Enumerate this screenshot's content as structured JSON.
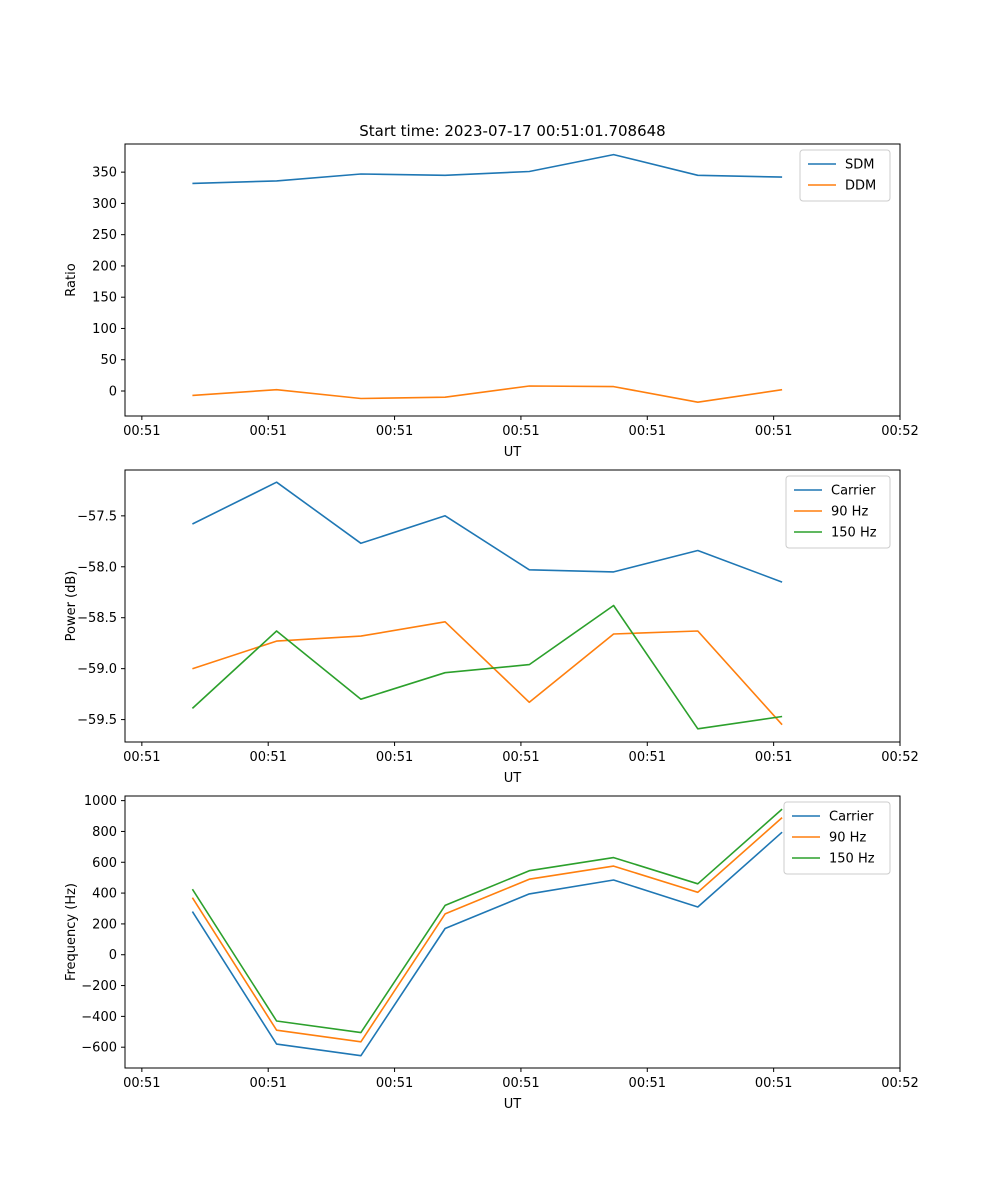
{
  "colors": {
    "blue": "#1f77b4",
    "orange": "#ff7f0e",
    "green": "#2ca02c"
  },
  "chart_data": [
    {
      "type": "line",
      "title": "Start time: 2023-07-17 00:51:01.708648",
      "xlabel": "UT",
      "ylabel": "Ratio",
      "x": [
        1,
        2,
        3,
        4,
        5,
        6,
        7,
        8
      ],
      "xlim": [
        0.2,
        9.4
      ],
      "xticks": [
        {
          "value": 0.4,
          "label": "00:51"
        },
        {
          "value": 1.9,
          "label": "00:51"
        },
        {
          "value": 3.4,
          "label": "00:51"
        },
        {
          "value": 4.9,
          "label": "00:51"
        },
        {
          "value": 6.4,
          "label": "00:51"
        },
        {
          "value": 7.9,
          "label": "00:51"
        },
        {
          "value": 9.4,
          "label": "00:52"
        }
      ],
      "ylim": [
        -40,
        395
      ],
      "yticks": [
        {
          "value": 0,
          "label": "0"
        },
        {
          "value": 50,
          "label": "50"
        },
        {
          "value": 100,
          "label": "100"
        },
        {
          "value": 150,
          "label": "150"
        },
        {
          "value": 200,
          "label": "200"
        },
        {
          "value": 250,
          "label": "250"
        },
        {
          "value": 300,
          "label": "300"
        },
        {
          "value": 350,
          "label": "350"
        }
      ],
      "legend": "top-right",
      "series": [
        {
          "name": "SDM",
          "color": "#1f77b4",
          "values": [
            332,
            336,
            347,
            345,
            351,
            378,
            345,
            342
          ]
        },
        {
          "name": "DDM",
          "color": "#ff7f0e",
          "values": [
            -7,
            2,
            -12,
            -10,
            8,
            7,
            -18,
            2
          ]
        }
      ]
    },
    {
      "type": "line",
      "title": "",
      "xlabel": "UT",
      "ylabel": "Power (dB)",
      "x": [
        1,
        2,
        3,
        4,
        5,
        6,
        7,
        8
      ],
      "xlim": [
        0.2,
        9.4
      ],
      "xticks": [
        {
          "value": 0.4,
          "label": "00:51"
        },
        {
          "value": 1.9,
          "label": "00:51"
        },
        {
          "value": 3.4,
          "label": "00:51"
        },
        {
          "value": 4.9,
          "label": "00:51"
        },
        {
          "value": 6.4,
          "label": "00:51"
        },
        {
          "value": 7.9,
          "label": "00:51"
        },
        {
          "value": 9.4,
          "label": "00:52"
        }
      ],
      "ylim": [
        -59.72,
        -57.05
      ],
      "yticks": [
        {
          "value": -59.5,
          "label": "−59.5"
        },
        {
          "value": -59.0,
          "label": "−59.0"
        },
        {
          "value": -58.5,
          "label": "−58.5"
        },
        {
          "value": -58.0,
          "label": "−58.0"
        },
        {
          "value": -57.5,
          "label": "−57.5"
        }
      ],
      "legend": "top-right",
      "series": [
        {
          "name": "Carrier",
          "color": "#1f77b4",
          "values": [
            -57.58,
            -57.17,
            -57.77,
            -57.5,
            -58.03,
            -58.05,
            -57.84,
            -58.15
          ]
        },
        {
          "name": "90 Hz",
          "color": "#ff7f0e",
          "values": [
            -59.0,
            -58.73,
            -58.68,
            -58.54,
            -59.33,
            -58.66,
            -58.63,
            -59.55
          ]
        },
        {
          "name": "150 Hz",
          "color": "#2ca02c",
          "values": [
            -59.39,
            -58.63,
            -59.3,
            -59.04,
            -58.96,
            -58.38,
            -59.59,
            -59.47
          ]
        }
      ]
    },
    {
      "type": "line",
      "title": "",
      "xlabel": "UT",
      "ylabel": "Frequency (Hz)",
      "x": [
        1,
        2,
        3,
        4,
        5,
        6,
        7,
        8
      ],
      "xlim": [
        0.2,
        9.4
      ],
      "xticks": [
        {
          "value": 0.4,
          "label": "00:51"
        },
        {
          "value": 1.9,
          "label": "00:51"
        },
        {
          "value": 3.4,
          "label": "00:51"
        },
        {
          "value": 4.9,
          "label": "00:51"
        },
        {
          "value": 6.4,
          "label": "00:51"
        },
        {
          "value": 7.9,
          "label": "00:51"
        },
        {
          "value": 9.4,
          "label": "00:52"
        }
      ],
      "ylim": [
        -735,
        1030
      ],
      "yticks": [
        {
          "value": -600,
          "label": "−600"
        },
        {
          "value": -400,
          "label": "−400"
        },
        {
          "value": -200,
          "label": "−200"
        },
        {
          "value": 0,
          "label": "0"
        },
        {
          "value": 200,
          "label": "200"
        },
        {
          "value": 400,
          "label": "400"
        },
        {
          "value": 600,
          "label": "600"
        },
        {
          "value": 800,
          "label": "800"
        },
        {
          "value": 1000,
          "label": "1000"
        }
      ],
      "legend": "top-right",
      "series": [
        {
          "name": "Carrier",
          "color": "#1f77b4",
          "values": [
            280,
            -580,
            -655,
            170,
            395,
            485,
            310,
            795
          ]
        },
        {
          "name": "90 Hz",
          "color": "#ff7f0e",
          "values": [
            370,
            -490,
            -565,
            265,
            490,
            575,
            405,
            890
          ]
        },
        {
          "name": "150 Hz",
          "color": "#2ca02c",
          "values": [
            425,
            -430,
            -505,
            320,
            545,
            630,
            460,
            945
          ]
        }
      ]
    }
  ]
}
